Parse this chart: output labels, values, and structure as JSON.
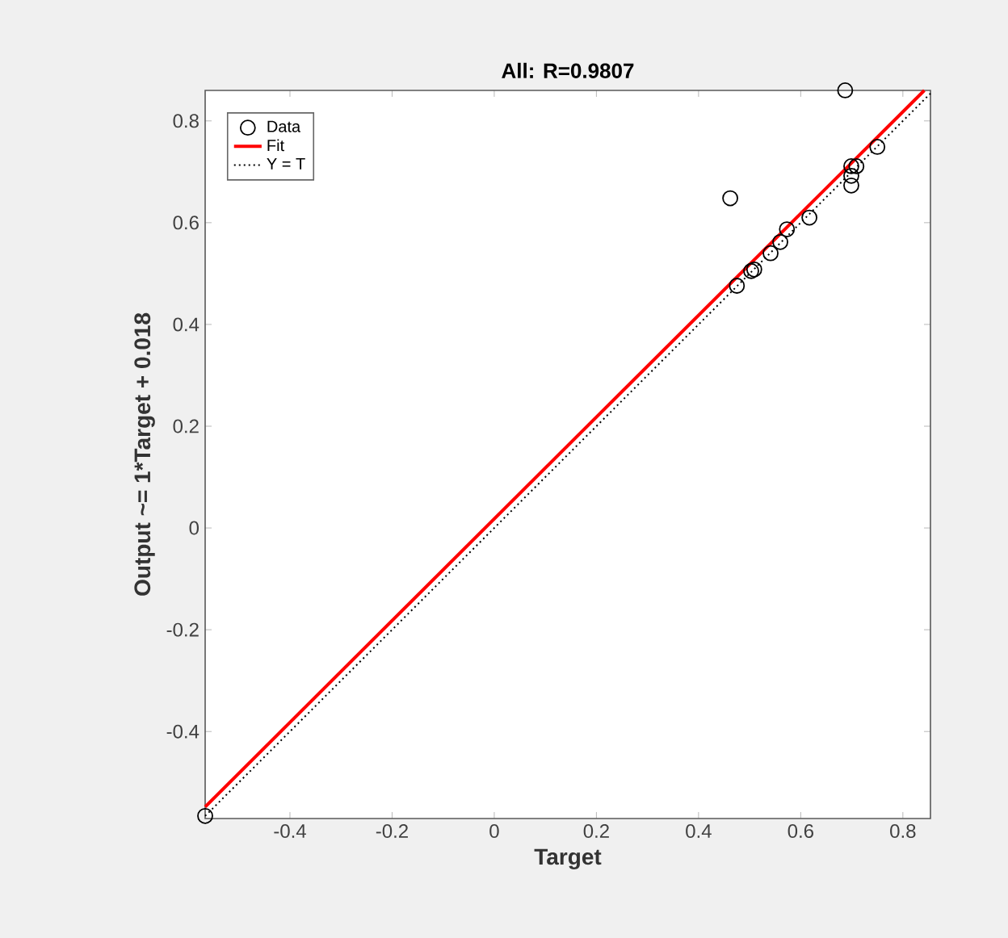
{
  "chart_data": {
    "type": "scatter",
    "title": "All: R=0.9807",
    "xlabel": "Target",
    "ylabel": "Output ~= 1*Target + 0.018",
    "xlim": [
      -0.566,
      0.854
    ],
    "ylim": [
      -0.571,
      0.86
    ],
    "xticks": [
      -0.4,
      -0.2,
      0,
      0.2,
      0.4,
      0.6,
      0.8
    ],
    "yticks": [
      -0.4,
      -0.2,
      0,
      0.2,
      0.4,
      0.6,
      0.8
    ],
    "grid": false,
    "legend": "top left",
    "series": [
      {
        "name": "Data",
        "color": "#000000",
        "marker": "circle",
        "x": [
          -0.566,
          0.687,
          0.462,
          0.75,
          0.699,
          0.699,
          0.699,
          0.709,
          0.617,
          0.573,
          0.56,
          0.541,
          0.509,
          0.503,
          0.475
        ],
        "values": [
          -0.566,
          0.86,
          0.648,
          0.749,
          0.711,
          0.692,
          0.673,
          0.711,
          0.61,
          0.587,
          0.562,
          0.54,
          0.508,
          0.505,
          0.476
        ]
      },
      {
        "name": "Fit",
        "type": "line",
        "color": "#ff0000",
        "line_style": "solid",
        "x": [
          -0.566,
          0.842
        ],
        "values": [
          -0.548,
          0.86
        ]
      },
      {
        "name": "Y = T",
        "type": "line",
        "color": "#000000",
        "line_style": "dotted",
        "x": [
          -0.566,
          0.854
        ],
        "values": [
          -0.566,
          0.854
        ]
      }
    ]
  }
}
